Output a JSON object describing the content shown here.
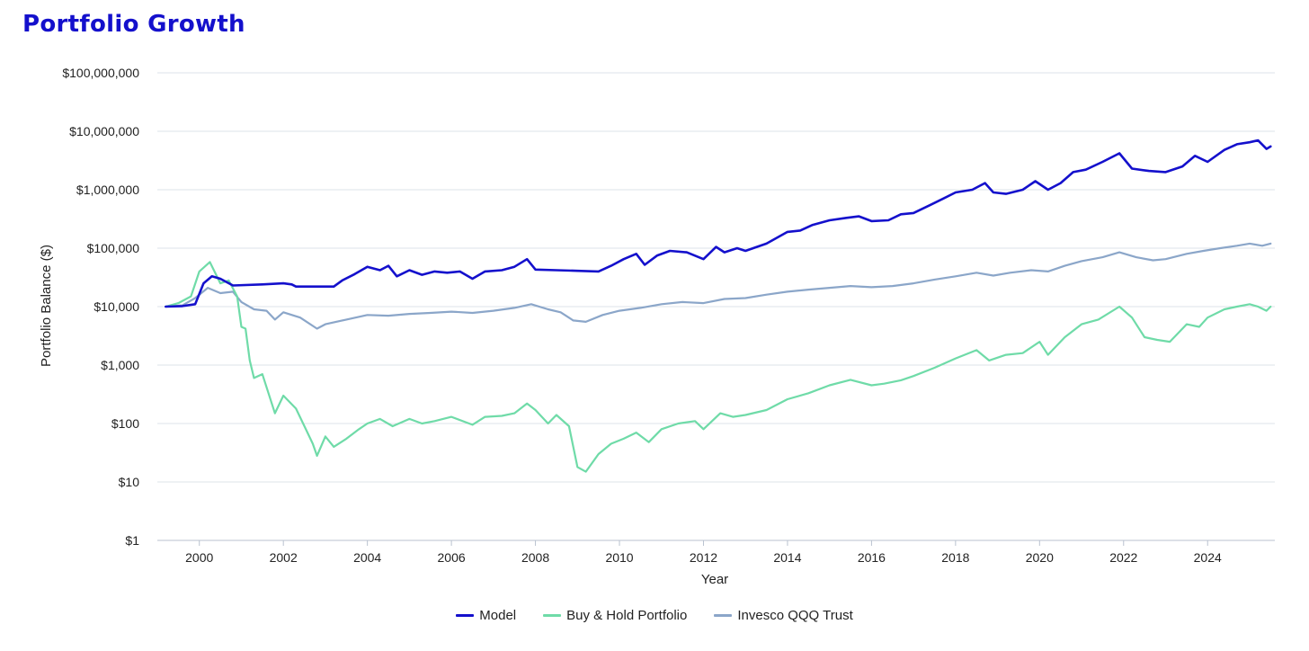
{
  "chart": {
    "title": "Portfolio Growth",
    "xlabel": "Year",
    "ylabel": "Portfolio Balance ($)",
    "y_ticks": [
      "$1",
      "$10",
      "$100",
      "$1,000",
      "$10,000",
      "$100,000",
      "$1,000,000",
      "$10,000,000",
      "$100,000,000"
    ],
    "x_ticks": [
      "2000",
      "2002",
      "2004",
      "2006",
      "2008",
      "2010",
      "2012",
      "2014",
      "2016",
      "2018",
      "2020",
      "2022",
      "2024"
    ],
    "legend": [
      {
        "label": "Model",
        "color": "#1410cc"
      },
      {
        "label": "Buy & Hold Portfolio",
        "color": "#6fdba8"
      },
      {
        "label": "Invesco QQQ Trust",
        "color": "#8ba6c9"
      }
    ]
  },
  "chart_data": {
    "type": "line",
    "y_scale": "log",
    "ylim": [
      1,
      100000000
    ],
    "xlim": [
      1999.0,
      2025.6
    ],
    "grid": "horizontal",
    "legend_position": "bottom",
    "series": [
      {
        "name": "Model",
        "color": "#1410cc",
        "points": [
          [
            1999.2,
            10000
          ],
          [
            1999.6,
            10200
          ],
          [
            1999.9,
            11000
          ],
          [
            2000.1,
            25000
          ],
          [
            2000.3,
            33000
          ],
          [
            2000.5,
            30000
          ],
          [
            2000.8,
            23000
          ],
          [
            2001.5,
            24000
          ],
          [
            2002.0,
            25000
          ],
          [
            2002.2,
            24000
          ],
          [
            2002.3,
            22000
          ],
          [
            2003.2,
            22000
          ],
          [
            2003.4,
            28000
          ],
          [
            2003.7,
            36000
          ],
          [
            2004.0,
            48000
          ],
          [
            2004.3,
            42000
          ],
          [
            2004.5,
            50000
          ],
          [
            2004.7,
            33000
          ],
          [
            2005.0,
            42000
          ],
          [
            2005.3,
            35000
          ],
          [
            2005.6,
            40000
          ],
          [
            2005.9,
            38000
          ],
          [
            2006.2,
            40000
          ],
          [
            2006.5,
            30000
          ],
          [
            2006.8,
            40000
          ],
          [
            2007.2,
            42000
          ],
          [
            2007.5,
            48000
          ],
          [
            2007.8,
            65000
          ],
          [
            2008.0,
            43000
          ],
          [
            2008.5,
            42000
          ],
          [
            2009.0,
            41000
          ],
          [
            2009.5,
            40000
          ],
          [
            2009.8,
            50000
          ],
          [
            2010.1,
            65000
          ],
          [
            2010.4,
            80000
          ],
          [
            2010.6,
            52000
          ],
          [
            2010.9,
            75000
          ],
          [
            2011.2,
            90000
          ],
          [
            2011.6,
            85000
          ],
          [
            2012.0,
            65000
          ],
          [
            2012.3,
            105000
          ],
          [
            2012.5,
            85000
          ],
          [
            2012.8,
            100000
          ],
          [
            2013.0,
            90000
          ],
          [
            2013.5,
            120000
          ],
          [
            2014.0,
            190000
          ],
          [
            2014.3,
            200000
          ],
          [
            2014.6,
            250000
          ],
          [
            2015.0,
            300000
          ],
          [
            2015.4,
            330000
          ],
          [
            2015.7,
            350000
          ],
          [
            2016.0,
            290000
          ],
          [
            2016.4,
            300000
          ],
          [
            2016.7,
            380000
          ],
          [
            2017.0,
            400000
          ],
          [
            2017.4,
            550000
          ],
          [
            2017.7,
            700000
          ],
          [
            2018.0,
            900000
          ],
          [
            2018.4,
            1000000
          ],
          [
            2018.7,
            1300000
          ],
          [
            2018.9,
            900000
          ],
          [
            2019.2,
            850000
          ],
          [
            2019.6,
            1000000
          ],
          [
            2019.9,
            1400000
          ],
          [
            2020.2,
            1000000
          ],
          [
            2020.5,
            1300000
          ],
          [
            2020.8,
            2000000
          ],
          [
            2021.1,
            2200000
          ],
          [
            2021.5,
            3000000
          ],
          [
            2021.9,
            4200000
          ],
          [
            2022.2,
            2300000
          ],
          [
            2022.6,
            2100000
          ],
          [
            2023.0,
            2000000
          ],
          [
            2023.4,
            2500000
          ],
          [
            2023.7,
            3800000
          ],
          [
            2024.0,
            3000000
          ],
          [
            2024.4,
            4800000
          ],
          [
            2024.7,
            6000000
          ],
          [
            2025.0,
            6500000
          ],
          [
            2025.2,
            7000000
          ],
          [
            2025.4,
            5000000
          ],
          [
            2025.5,
            5500000
          ]
        ]
      },
      {
        "name": "Buy & Hold Portfolio",
        "color": "#6fdba8",
        "points": [
          [
            1999.2,
            10000
          ],
          [
            1999.5,
            11500
          ],
          [
            1999.8,
            15000
          ],
          [
            2000.0,
            40000
          ],
          [
            2000.25,
            58000
          ],
          [
            2000.5,
            25000
          ],
          [
            2000.7,
            28000
          ],
          [
            2000.9,
            15000
          ],
          [
            2001.0,
            4500
          ],
          [
            2001.1,
            4200
          ],
          [
            2001.2,
            1200
          ],
          [
            2001.3,
            600
          ],
          [
            2001.5,
            700
          ],
          [
            2001.8,
            150
          ],
          [
            2002.0,
            300
          ],
          [
            2002.3,
            180
          ],
          [
            2002.5,
            90
          ],
          [
            2002.7,
            45
          ],
          [
            2002.8,
            28
          ],
          [
            2003.0,
            60
          ],
          [
            2003.2,
            40
          ],
          [
            2003.5,
            55
          ],
          [
            2003.8,
            80
          ],
          [
            2004.0,
            100
          ],
          [
            2004.3,
            120
          ],
          [
            2004.6,
            90
          ],
          [
            2005.0,
            120
          ],
          [
            2005.3,
            100
          ],
          [
            2005.6,
            110
          ],
          [
            2006.0,
            130
          ],
          [
            2006.5,
            95
          ],
          [
            2006.8,
            130
          ],
          [
            2007.2,
            135
          ],
          [
            2007.5,
            150
          ],
          [
            2007.8,
            220
          ],
          [
            2008.0,
            170
          ],
          [
            2008.3,
            100
          ],
          [
            2008.5,
            140
          ],
          [
            2008.8,
            90
          ],
          [
            2009.0,
            18
          ],
          [
            2009.2,
            15
          ],
          [
            2009.5,
            30
          ],
          [
            2009.8,
            45
          ],
          [
            2010.1,
            55
          ],
          [
            2010.4,
            70
          ],
          [
            2010.7,
            48
          ],
          [
            2011.0,
            80
          ],
          [
            2011.4,
            100
          ],
          [
            2011.8,
            110
          ],
          [
            2012.0,
            80
          ],
          [
            2012.4,
            150
          ],
          [
            2012.7,
            130
          ],
          [
            2013.0,
            140
          ],
          [
            2013.5,
            170
          ],
          [
            2014.0,
            260
          ],
          [
            2014.5,
            330
          ],
          [
            2015.0,
            450
          ],
          [
            2015.5,
            560
          ],
          [
            2016.0,
            450
          ],
          [
            2016.3,
            480
          ],
          [
            2016.7,
            550
          ],
          [
            2017.0,
            650
          ],
          [
            2017.5,
            900
          ],
          [
            2018.0,
            1300
          ],
          [
            2018.5,
            1800
          ],
          [
            2018.8,
            1200
          ],
          [
            2019.2,
            1500
          ],
          [
            2019.6,
            1600
          ],
          [
            2020.0,
            2500
          ],
          [
            2020.2,
            1500
          ],
          [
            2020.6,
            3000
          ],
          [
            2021.0,
            5000
          ],
          [
            2021.4,
            6000
          ],
          [
            2021.9,
            10000
          ],
          [
            2022.2,
            6500
          ],
          [
            2022.5,
            3000
          ],
          [
            2022.8,
            2700
          ],
          [
            2023.1,
            2500
          ],
          [
            2023.5,
            5000
          ],
          [
            2023.8,
            4500
          ],
          [
            2024.0,
            6500
          ],
          [
            2024.4,
            9000
          ],
          [
            2024.7,
            10000
          ],
          [
            2025.0,
            11000
          ],
          [
            2025.2,
            10000
          ],
          [
            2025.4,
            8500
          ],
          [
            2025.5,
            10000
          ]
        ]
      },
      {
        "name": "Invesco QQQ Trust",
        "color": "#8ba6c9",
        "points": [
          [
            1999.2,
            10000
          ],
          [
            1999.6,
            10500
          ],
          [
            1999.9,
            14000
          ],
          [
            2000.2,
            21000
          ],
          [
            2000.5,
            17000
          ],
          [
            2000.8,
            18000
          ],
          [
            2001.0,
            12000
          ],
          [
            2001.3,
            9000
          ],
          [
            2001.6,
            8500
          ],
          [
            2001.8,
            6000
          ],
          [
            2002.0,
            8000
          ],
          [
            2002.4,
            6500
          ],
          [
            2002.8,
            4200
          ],
          [
            2003.0,
            5000
          ],
          [
            2003.5,
            6000
          ],
          [
            2004.0,
            7200
          ],
          [
            2004.5,
            7000
          ],
          [
            2005.0,
            7500
          ],
          [
            2005.5,
            7800
          ],
          [
            2006.0,
            8200
          ],
          [
            2006.5,
            7800
          ],
          [
            2007.0,
            8500
          ],
          [
            2007.5,
            9500
          ],
          [
            2007.9,
            11000
          ],
          [
            2008.3,
            9000
          ],
          [
            2008.6,
            8000
          ],
          [
            2008.9,
            5800
          ],
          [
            2009.2,
            5500
          ],
          [
            2009.6,
            7200
          ],
          [
            2010.0,
            8500
          ],
          [
            2010.5,
            9500
          ],
          [
            2011.0,
            11000
          ],
          [
            2011.5,
            12000
          ],
          [
            2012.0,
            11500
          ],
          [
            2012.5,
            13500
          ],
          [
            2013.0,
            14000
          ],
          [
            2013.5,
            16000
          ],
          [
            2014.0,
            18000
          ],
          [
            2014.5,
            19500
          ],
          [
            2015.0,
            21000
          ],
          [
            2015.5,
            22500
          ],
          [
            2016.0,
            21500
          ],
          [
            2016.5,
            22500
          ],
          [
            2017.0,
            25000
          ],
          [
            2017.5,
            29000
          ],
          [
            2018.0,
            33000
          ],
          [
            2018.5,
            38000
          ],
          [
            2018.9,
            34000
          ],
          [
            2019.3,
            38000
          ],
          [
            2019.8,
            42000
          ],
          [
            2020.2,
            40000
          ],
          [
            2020.6,
            50000
          ],
          [
            2021.0,
            60000
          ],
          [
            2021.5,
            70000
          ],
          [
            2021.9,
            85000
          ],
          [
            2022.3,
            70000
          ],
          [
            2022.7,
            62000
          ],
          [
            2023.0,
            65000
          ],
          [
            2023.5,
            80000
          ],
          [
            2023.9,
            90000
          ],
          [
            2024.3,
            100000
          ],
          [
            2024.7,
            110000
          ],
          [
            2025.0,
            120000
          ],
          [
            2025.3,
            110000
          ],
          [
            2025.5,
            120000
          ]
        ]
      }
    ]
  }
}
